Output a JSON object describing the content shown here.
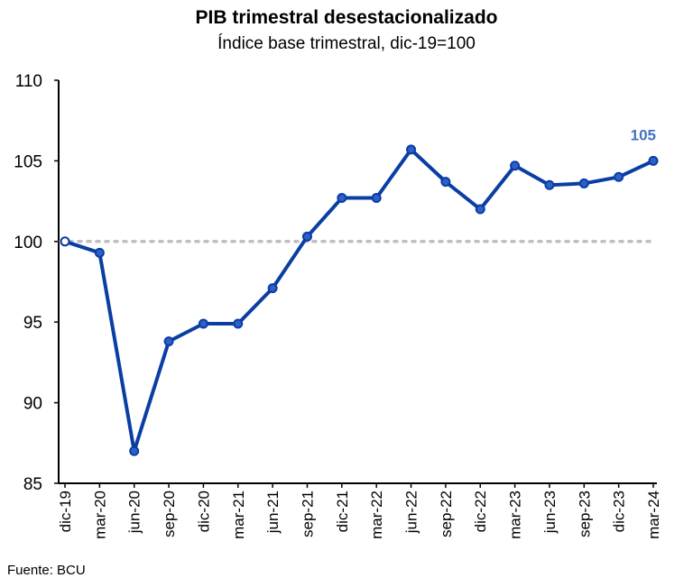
{
  "chart_data": {
    "type": "line",
    "title": "PIB trimestral desestacionalizado",
    "subtitle": "Índice base trimestral, dic-19=100",
    "xlabel": "",
    "ylabel": "",
    "ylim": [
      85,
      110
    ],
    "yticks": [
      85,
      90,
      95,
      100,
      105,
      110
    ],
    "reference_line": 100,
    "categories": [
      "dic-19",
      "mar-20",
      "jun-20",
      "sep-20",
      "dic-20",
      "mar-21",
      "jun-21",
      "sep-21",
      "dic-21",
      "mar-22",
      "jun-22",
      "sep-22",
      "dic-22",
      "mar-23",
      "jun-23",
      "sep-23",
      "dic-23",
      "mar-24"
    ],
    "series": [
      {
        "name": "PIB trimestral desestacionalizado",
        "values": [
          100.0,
          99.3,
          87.0,
          93.8,
          94.9,
          94.9,
          97.1,
          100.3,
          102.7,
          102.7,
          105.7,
          103.7,
          102.0,
          104.7,
          103.5,
          103.6,
          104.0,
          105.0
        ]
      }
    ],
    "last_value_label": "105",
    "colors": {
      "line": "#0a3ea3",
      "marker_fill": "#2f5fc7",
      "label": "#4472c4",
      "reference": "#bfbfbf"
    },
    "source": "Fuente: BCU"
  }
}
